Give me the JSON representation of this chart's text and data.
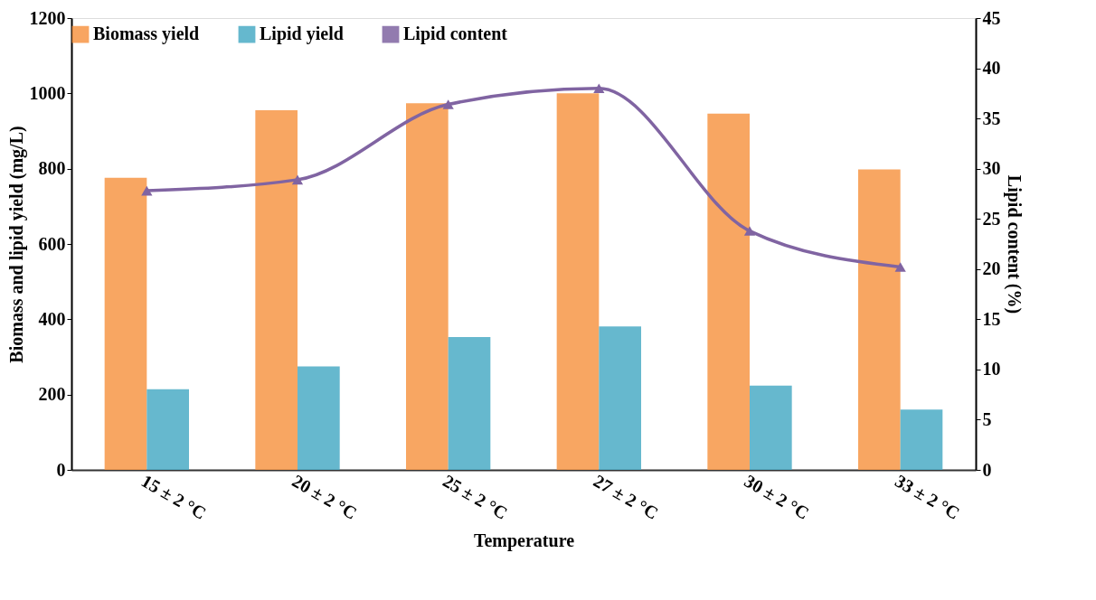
{
  "chart_data": {
    "type": "bar",
    "xlabel": "Temperature",
    "ylabel": "Biomass and lipid yield (mg/L)",
    "y2label": "Lipid content (%)",
    "categories": [
      "15 ± 2 °C",
      "20 ± 2 °C",
      "25 ± 2 °C",
      "27 ± 2 °C",
      "30 ± 2 °C",
      "33 ± 2 °C"
    ],
    "series": [
      {
        "name": "Biomass yield",
        "color": "#f79646",
        "values": [
          776,
          955,
          974,
          1000,
          946,
          798
        ]
      },
      {
        "name": "Lipid yield",
        "color": "#4bacc6",
        "values": [
          214,
          275,
          353,
          381,
          224,
          160
        ]
      },
      {
        "name": "Lipid content",
        "type": "line",
        "axis": "y2",
        "color": "#8064a2",
        "marker": "triangle",
        "values": [
          27.8,
          28.9,
          36.4,
          38.0,
          23.8,
          20.2
        ]
      }
    ],
    "ylim": [
      0,
      1200
    ],
    "yticks": [
      0,
      200,
      400,
      600,
      800,
      1000,
      1200
    ],
    "y2lim": [
      0,
      45
    ],
    "y2ticks": [
      0,
      5,
      10,
      15,
      20,
      25,
      30,
      35,
      40,
      45
    ],
    "grid": false,
    "legend": "top"
  }
}
